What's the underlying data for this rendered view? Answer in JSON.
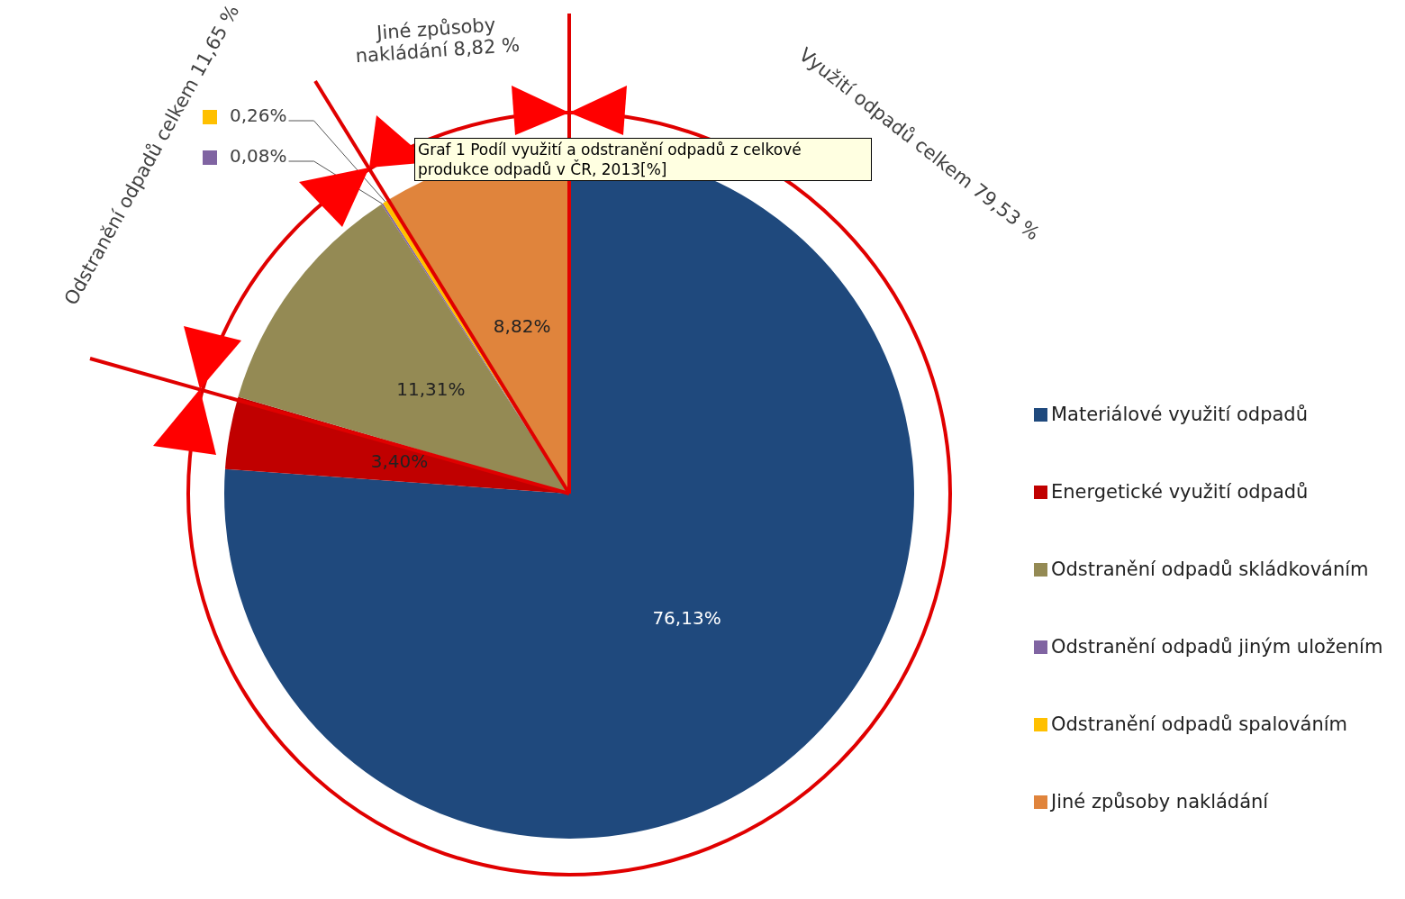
{
  "chart_data": {
    "type": "pie",
    "title": "Graf 1 Podíl využití a odstranění odpadů z celkové produkce odpadů v ČR, 2013[%]",
    "categories": [
      "Materiálové využití odpadů",
      "Energetické využití odpadů",
      "Odstranění odpadů skládkováním",
      "Odstranění odpadů jiným uložením",
      "Odstranění odpadů spalováním",
      "Jiné způsoby nakládání"
    ],
    "values": [
      76.13,
      3.4,
      11.31,
      0.08,
      0.26,
      8.82
    ],
    "colors": [
      "#1f497d",
      "#c00000",
      "#948a54",
      "#8064a2",
      "#ffc000",
      "#e0843c"
    ],
    "value_labels": [
      "76,13%",
      "3,40%",
      "11,31%",
      "0,08%",
      "0,26%",
      "8,82%"
    ],
    "legend": "right",
    "annotations": [
      "Odstranění odpadů celkem 11,65 %",
      "Jiné způsoby nakládání 8,82 %",
      "Využití odpadů celkem 79,53 %"
    ]
  }
}
